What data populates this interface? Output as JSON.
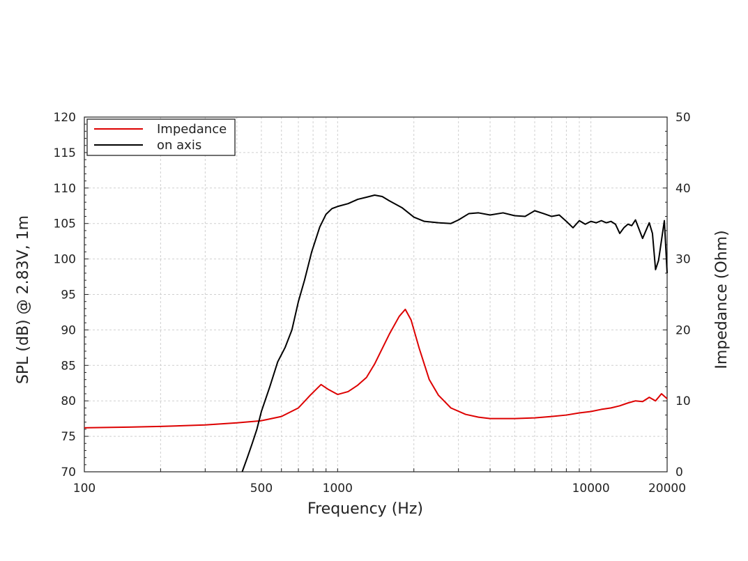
{
  "chart_data": {
    "type": "line",
    "title": "",
    "xlabel": "Frequency (Hz)",
    "ylabel": "SPL (dB) @ 2.83V, 1m",
    "ylabel_right": "Impedance (Ohm)",
    "x_scale": "log",
    "xlim": [
      100,
      20000
    ],
    "ylim": [
      70,
      120
    ],
    "ylim_right": [
      0,
      50
    ],
    "x_ticks": [
      100,
      500,
      1000,
      10000,
      20000
    ],
    "x_tick_labels": [
      "100",
      "500",
      "1000",
      "10000",
      "20000"
    ],
    "y_ticks": [
      70,
      75,
      80,
      85,
      90,
      95,
      100,
      105,
      110,
      115,
      120
    ],
    "y_tick_labels": [
      "70",
      "75",
      "80",
      "85",
      "90",
      "95",
      "100",
      "105",
      "110",
      "115",
      "120"
    ],
    "y_right_ticks": [
      0,
      10,
      20,
      30,
      40,
      50
    ],
    "y_right_tick_labels": [
      "0",
      "10",
      "20",
      "30",
      "40",
      "50"
    ],
    "grid": true,
    "legend_position": "top-left",
    "series": [
      {
        "name": "Impedance",
        "axis": "right",
        "color": "#dd0000",
        "points": [
          [
            100,
            6.2
          ],
          [
            150,
            6.3
          ],
          [
            200,
            6.4
          ],
          [
            300,
            6.6
          ],
          [
            400,
            6.9
          ],
          [
            500,
            7.2
          ],
          [
            600,
            7.8
          ],
          [
            700,
            9.0
          ],
          [
            780,
            10.8
          ],
          [
            860,
            12.3
          ],
          [
            920,
            11.6
          ],
          [
            1000,
            10.9
          ],
          [
            1100,
            11.3
          ],
          [
            1200,
            12.2
          ],
          [
            1300,
            13.3
          ],
          [
            1400,
            15.2
          ],
          [
            1600,
            19.4
          ],
          [
            1750,
            21.9
          ],
          [
            1850,
            22.9
          ],
          [
            1950,
            21.4
          ],
          [
            2100,
            17.4
          ],
          [
            2300,
            13.0
          ],
          [
            2500,
            10.8
          ],
          [
            2800,
            9.0
          ],
          [
            3200,
            8.1
          ],
          [
            3600,
            7.7
          ],
          [
            4000,
            7.5
          ],
          [
            5000,
            7.5
          ],
          [
            6000,
            7.6
          ],
          [
            7000,
            7.8
          ],
          [
            8000,
            8.0
          ],
          [
            9000,
            8.3
          ],
          [
            10000,
            8.5
          ],
          [
            11000,
            8.8
          ],
          [
            12000,
            9.0
          ],
          [
            13000,
            9.3
          ],
          [
            14000,
            9.7
          ],
          [
            15000,
            10.0
          ],
          [
            16000,
            9.9
          ],
          [
            17000,
            10.5
          ],
          [
            18000,
            10.0
          ],
          [
            19000,
            11.0
          ],
          [
            20000,
            10.3
          ]
        ]
      },
      {
        "name": "on axis",
        "axis": "left",
        "color": "#000000",
        "points": [
          [
            420,
            70.0
          ],
          [
            440,
            72.0
          ],
          [
            460,
            74.0
          ],
          [
            480,
            76.0
          ],
          [
            500,
            78.5
          ],
          [
            540,
            82.0
          ],
          [
            580,
            85.5
          ],
          [
            620,
            87.5
          ],
          [
            660,
            90.0
          ],
          [
            700,
            94.0
          ],
          [
            740,
            97.0
          ],
          [
            790,
            101.0
          ],
          [
            850,
            104.5
          ],
          [
            900,
            106.3
          ],
          [
            950,
            107.1
          ],
          [
            1000,
            107.4
          ],
          [
            1100,
            107.8
          ],
          [
            1200,
            108.4
          ],
          [
            1300,
            108.7
          ],
          [
            1400,
            109.0
          ],
          [
            1500,
            108.8
          ],
          [
            1600,
            108.2
          ],
          [
            1800,
            107.2
          ],
          [
            2000,
            105.9
          ],
          [
            2200,
            105.3
          ],
          [
            2500,
            105.1
          ],
          [
            2800,
            105.0
          ],
          [
            3000,
            105.5
          ],
          [
            3300,
            106.4
          ],
          [
            3600,
            106.5
          ],
          [
            4000,
            106.2
          ],
          [
            4500,
            106.5
          ],
          [
            5000,
            106.1
          ],
          [
            5500,
            106.0
          ],
          [
            6000,
            106.8
          ],
          [
            6500,
            106.4
          ],
          [
            7000,
            106.0
          ],
          [
            7500,
            106.2
          ],
          [
            8000,
            105.3
          ],
          [
            8500,
            104.4
          ],
          [
            9000,
            105.4
          ],
          [
            9500,
            104.9
          ],
          [
            10000,
            105.3
          ],
          [
            10500,
            105.1
          ],
          [
            11000,
            105.4
          ],
          [
            11500,
            105.1
          ],
          [
            12000,
            105.3
          ],
          [
            12500,
            104.9
          ],
          [
            13000,
            103.6
          ],
          [
            13500,
            104.4
          ],
          [
            14000,
            104.9
          ],
          [
            14500,
            104.7
          ],
          [
            15000,
            105.5
          ],
          [
            16000,
            102.9
          ],
          [
            17000,
            105.1
          ],
          [
            17500,
            103.6
          ],
          [
            18000,
            98.5
          ],
          [
            18500,
            99.8
          ],
          [
            19500,
            105.4
          ],
          [
            20000,
            98.0
          ]
        ]
      }
    ]
  }
}
